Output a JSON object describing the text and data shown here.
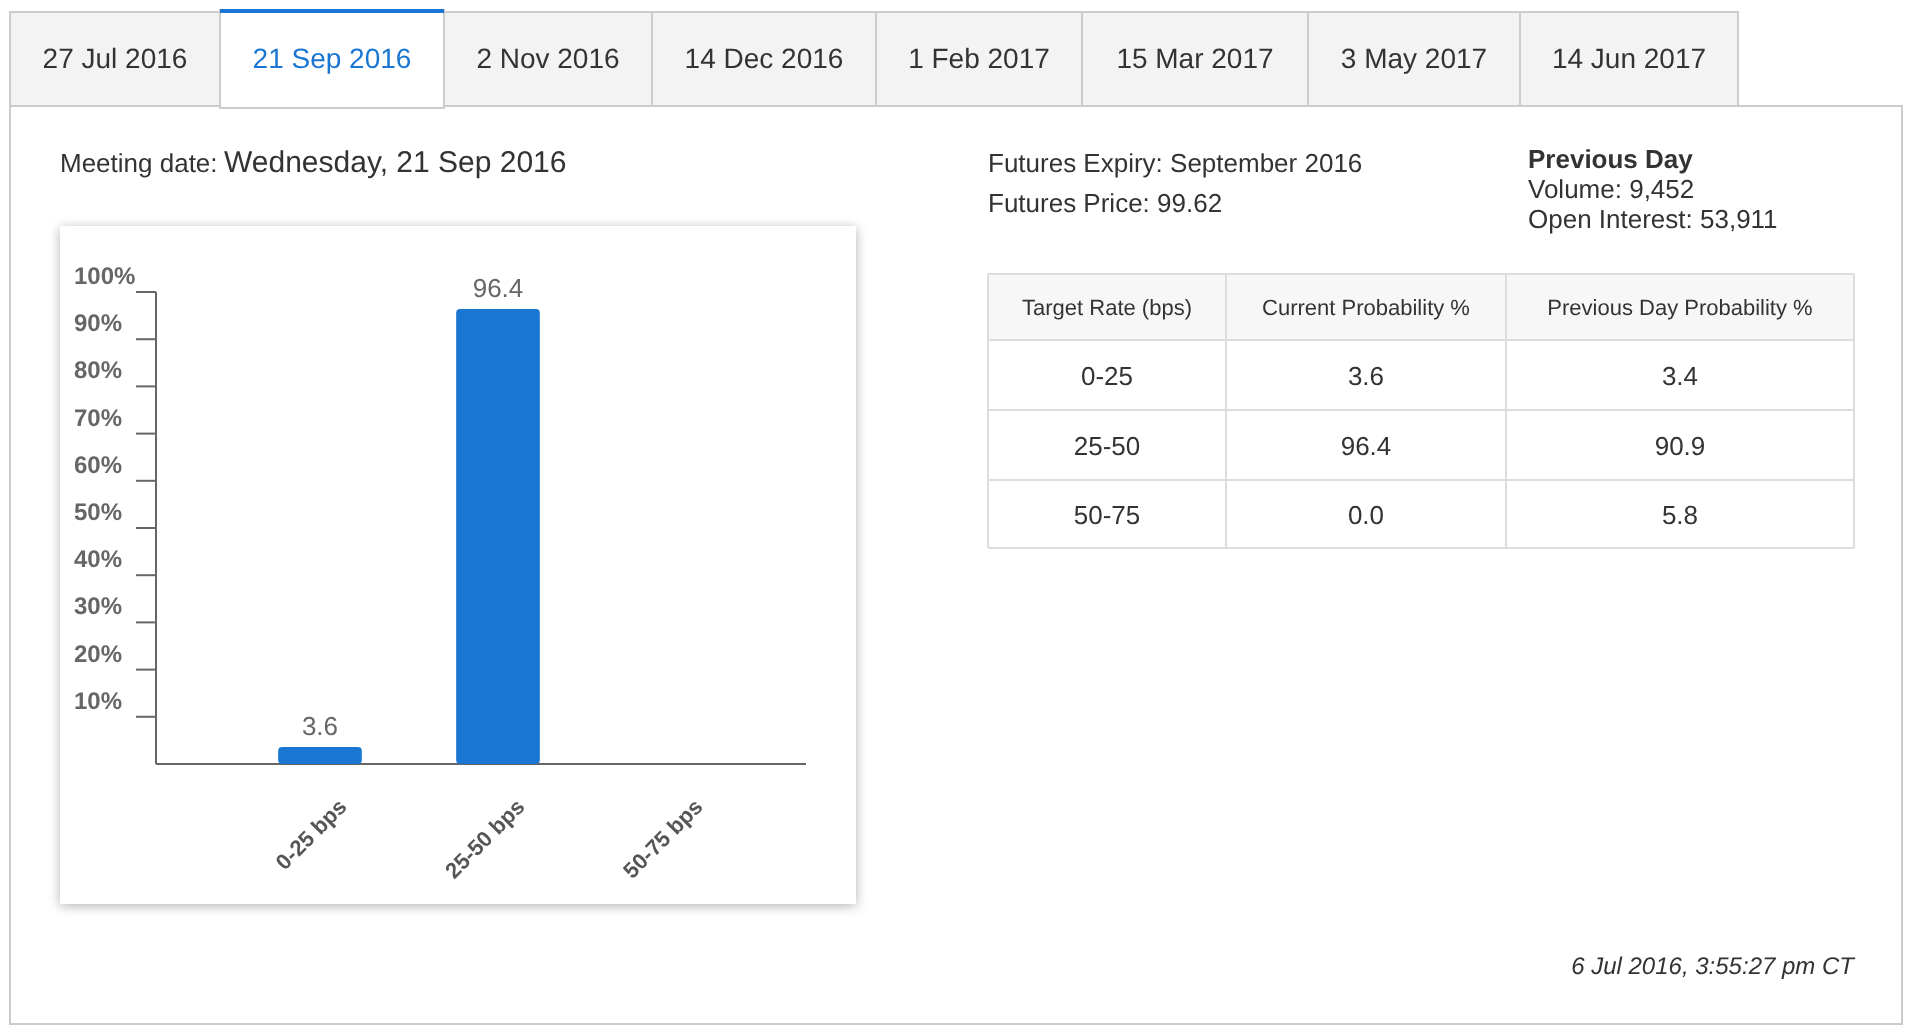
{
  "chart_data": [
    {
      "type": "bar",
      "categories": [
        "0-25 bps",
        "25-50 bps",
        "50-75 bps"
      ],
      "values": [
        3.6,
        96.4,
        0.0
      ],
      "value_labels": [
        "3.6",
        "96.4",
        null
      ],
      "color": "#1976d2",
      "ylim": [
        0,
        100
      ],
      "yticks": [
        {
          "value": 10,
          "label": "10%"
        },
        {
          "value": 20,
          "label": "20%"
        },
        {
          "value": 30,
          "label": "30%"
        },
        {
          "value": 40,
          "label": "40%"
        },
        {
          "value": 50,
          "label": "50%"
        },
        {
          "value": 60,
          "label": "60%"
        },
        {
          "value": 70,
          "label": "70%"
        },
        {
          "value": 80,
          "label": "80%"
        },
        {
          "value": 90,
          "label": "90%"
        },
        {
          "value": 100,
          "label": "100%"
        }
      ],
      "grid": false
    },
    {
      "type": "other",
      "annotations": [
        "27 Jul 2016",
        "21 Sep 2016",
        "2 Nov 2016",
        "14 Dec 2016",
        "1 Feb 2017",
        "15 Mar 2017",
        "3 May 2017",
        "14 Jun 2017",
        "Meeting date:",
        "Wednesday, 21 Sep 2016",
        "Futures Expiry: September 2016",
        "Futures Price: 99.62",
        "Previous Day",
        "Volume: 9,452",
        "Open Interest: 53,911",
        "Target Rate (bps)",
        "Current Probability %",
        "Previous Day Probability %",
        "0-25",
        "3.6",
        "3.4",
        "25-50",
        "96.4",
        "90.9",
        "50-75",
        "0.0",
        "5.8",
        "6 Jul 2016, 3:55:27 pm CT"
      ]
    }
  ]
}
